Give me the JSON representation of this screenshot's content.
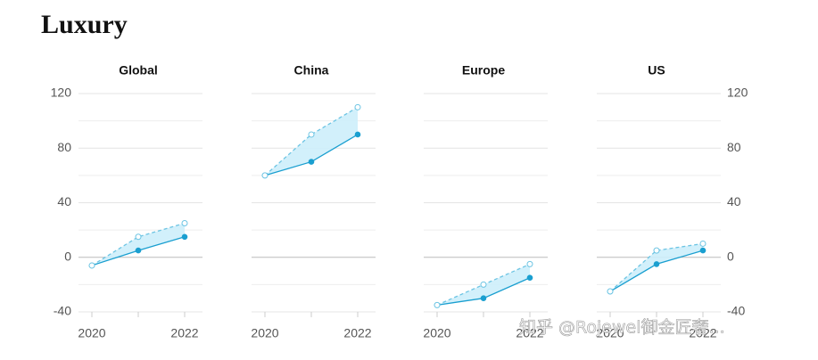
{
  "title": "Luxury",
  "watermark": "知乎 @Rojewel御金匠奢...",
  "chart_data": [
    {
      "type": "line",
      "title": "Global",
      "categories": [
        "2020",
        null,
        "2022"
      ],
      "series": [
        {
          "color": "#1a9fd0",
          "style": "solid",
          "values": [
            -6,
            5,
            15
          ]
        },
        {
          "color": "#6cc4e3",
          "style": "dashed",
          "values": [
            -6,
            15,
            25
          ]
        }
      ],
      "fill_between": "#cdeefb",
      "ylim": [
        -40,
        120
      ],
      "yticks": [
        -40,
        0,
        40,
        80,
        120
      ],
      "minor_yticks": [
        -20,
        20,
        60,
        100
      ],
      "ytick_side": "left"
    },
    {
      "type": "line",
      "title": "China",
      "categories": [
        "2020",
        null,
        "2022"
      ],
      "series": [
        {
          "color": "#1a9fd0",
          "style": "solid",
          "values": [
            60,
            70,
            90
          ]
        },
        {
          "color": "#6cc4e3",
          "style": "dashed",
          "values": [
            60,
            90,
            110
          ]
        }
      ],
      "fill_between": "#cdeefb",
      "ylim": [
        -40,
        120
      ],
      "yticks": [
        -40,
        0,
        40,
        80,
        120
      ],
      "minor_yticks": [
        -20,
        20,
        60,
        100
      ]
    },
    {
      "type": "line",
      "title": "Europe",
      "categories": [
        "2020",
        null,
        "2022"
      ],
      "series": [
        {
          "color": "#1a9fd0",
          "style": "solid",
          "values": [
            -35,
            -30,
            -15
          ]
        },
        {
          "color": "#6cc4e3",
          "style": "dashed",
          "values": [
            -35,
            -20,
            -5
          ]
        }
      ],
      "fill_between": "#cdeefb",
      "ylim": [
        -40,
        120
      ],
      "yticks": [
        -40,
        0,
        40,
        80,
        120
      ],
      "minor_yticks": [
        -20,
        20,
        60,
        100
      ]
    },
    {
      "type": "line",
      "title": "US",
      "categories": [
        "2020",
        null,
        "2022"
      ],
      "series": [
        {
          "color": "#1a9fd0",
          "style": "solid",
          "values": [
            -25,
            -5,
            5
          ]
        },
        {
          "color": "#6cc4e3",
          "style": "dashed",
          "values": [
            -25,
            5,
            10
          ]
        }
      ],
      "fill_between": "#cdeefb",
      "ylim": [
        -40,
        120
      ],
      "yticks": [
        -40,
        0,
        40,
        80,
        120
      ],
      "minor_yticks": [
        -20,
        20,
        60,
        100
      ],
      "ytick_side": "right"
    }
  ]
}
